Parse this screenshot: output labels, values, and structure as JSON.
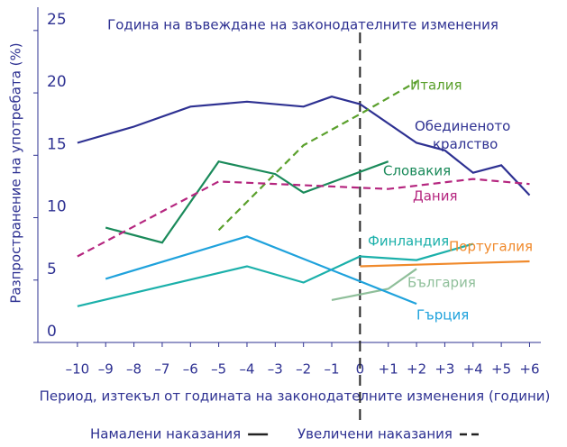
{
  "chart_data": {
    "type": "line",
    "annotation": "Година на въвеждане на законодателните изменения",
    "x_label": "Период, изтекъл от годината на законодателните изменения (години)",
    "y_label": "Разпространение на употребата (%)",
    "xlim": [
      -11.4,
      6.4
    ],
    "ylim": [
      0,
      26
    ],
    "xticks": [
      {
        "value": -10,
        "label": "–10"
      },
      {
        "value": -9,
        "label": "–9"
      },
      {
        "value": -8,
        "label": "–8"
      },
      {
        "value": -7,
        "label": "–7"
      },
      {
        "value": -6,
        "label": "–6"
      },
      {
        "value": -5,
        "label": "–5"
      },
      {
        "value": -4,
        "label": "–4"
      },
      {
        "value": -3,
        "label": "–3"
      },
      {
        "value": -2,
        "label": "–2"
      },
      {
        "value": -1,
        "label": "–1"
      },
      0,
      {
        "value": 1,
        "label": "+1"
      },
      {
        "value": 2,
        "label": "+2"
      },
      {
        "value": 3,
        "label": "+3"
      },
      {
        "value": 4,
        "label": "+4"
      },
      {
        "value": 5,
        "label": "+5"
      },
      {
        "value": 6,
        "label": "+6"
      }
    ],
    "yticks": [
      0,
      5,
      10,
      15,
      20,
      25
    ],
    "legend": [
      {
        "label": "Намалени наказания",
        "dashed": false
      },
      {
        "label": "Увеличени наказания",
        "dashed": true
      }
    ],
    "series": [
      {
        "name": "Обединеното кралство",
        "color": "#2e3192",
        "dashed": false,
        "x": [
          -10,
          -8,
          -6,
          -4,
          -2,
          -1,
          0,
          2,
          3,
          4,
          5,
          6
        ],
        "values": [
          16.0,
          17.3,
          18.9,
          19.3,
          18.9,
          19.7,
          19.1,
          16.0,
          15.4,
          13.6,
          14.2,
          11.8
        ]
      },
      {
        "name": "Италия",
        "color": "#5aa02c",
        "dashed": true,
        "x": [
          -5,
          -2,
          0,
          2
        ],
        "values": [
          9.0,
          15.8,
          18.3,
          20.9
        ]
      },
      {
        "name": "Словакия",
        "color": "#1a8a5a",
        "dashed": false,
        "x": [
          -9,
          -7,
          -5,
          -3,
          -2,
          1
        ],
        "values": [
          9.2,
          8.0,
          14.5,
          13.5,
          12.0,
          14.5
        ]
      },
      {
        "name": "Дания",
        "color": "#b5267f",
        "dashed": true,
        "x": [
          -10,
          -5,
          -2,
          1,
          4,
          6
        ],
        "values": [
          6.9,
          12.9,
          12.6,
          12.3,
          13.1,
          12.7
        ]
      },
      {
        "name": "Финландия",
        "color": "#1bb0aa",
        "dashed": false,
        "x": [
          -10,
          -4,
          -2,
          0,
          2,
          4
        ],
        "values": [
          2.9,
          6.1,
          4.8,
          6.9,
          6.6,
          7.9
        ]
      },
      {
        "name": "Португалия",
        "color": "#f08a2c",
        "dashed": false,
        "x": [
          0,
          6
        ],
        "values": [
          6.1,
          6.5
        ]
      },
      {
        "name": "България",
        "color": "#8fbf9a",
        "dashed": false,
        "x": [
          -1,
          1,
          2
        ],
        "values": [
          3.4,
          4.3,
          5.9
        ]
      },
      {
        "name": "Гърция",
        "color": "#1fa2dc",
        "dashed": false,
        "x": [
          -9,
          -4,
          2
        ],
        "values": [
          5.1,
          8.5,
          3.1
        ]
      }
    ]
  }
}
